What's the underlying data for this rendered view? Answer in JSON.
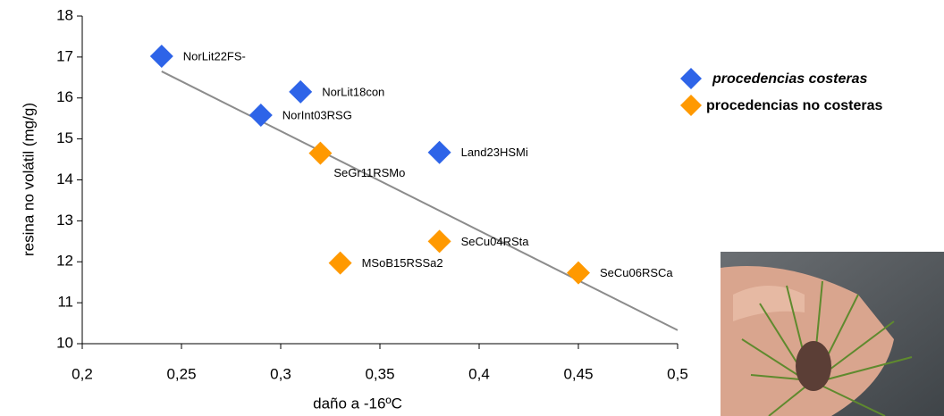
{
  "chart_data": {
    "type": "scatter",
    "xlabel": "daño a -16ºC",
    "ylabel": "resina no volátil  (mg/g)",
    "xlim": [
      0.2,
      0.5
    ],
    "ylim": [
      10,
      18
    ],
    "xticks": [
      {
        "value": 0.2,
        "label": "0,2"
      },
      {
        "value": 0.25,
        "label": "0,25"
      },
      {
        "value": 0.3,
        "label": "0,3"
      },
      {
        "value": 0.35,
        "label": "0,35"
      },
      {
        "value": 0.4,
        "label": "0,4"
      },
      {
        "value": 0.45,
        "label": "0,45"
      },
      {
        "value": 0.5,
        "label": "0,5"
      }
    ],
    "yticks": [
      10,
      11,
      12,
      13,
      14,
      15,
      16,
      17,
      18
    ],
    "grid": false,
    "legend": "upper right",
    "series": [
      {
        "name": "procedencias costeras",
        "color": "#2e64e8",
        "x": [
          0.24,
          0.31,
          0.29,
          0.38
        ],
        "y": [
          17.02,
          16.15,
          15.58,
          14.67
        ],
        "labels": [
          "NorLit22FS-",
          "NorLit18con",
          "NorInt03RSG",
          "Land23HSMi"
        ]
      },
      {
        "name": "procedencias no costeras",
        "color": "#ff9900",
        "x": [
          0.32,
          0.38,
          0.33,
          0.45
        ],
        "y": [
          14.65,
          12.5,
          11.97,
          11.73
        ],
        "labels": [
          "SeGr11RSMo",
          "SeCu04RSta",
          "MSoB15RSSa2",
          "SeCu06RSCa"
        ]
      }
    ],
    "trendline": {
      "color": "#8c8c8c",
      "x": [
        0.24,
        0.5
      ],
      "y": [
        16.65,
        10.33
      ]
    }
  }
}
